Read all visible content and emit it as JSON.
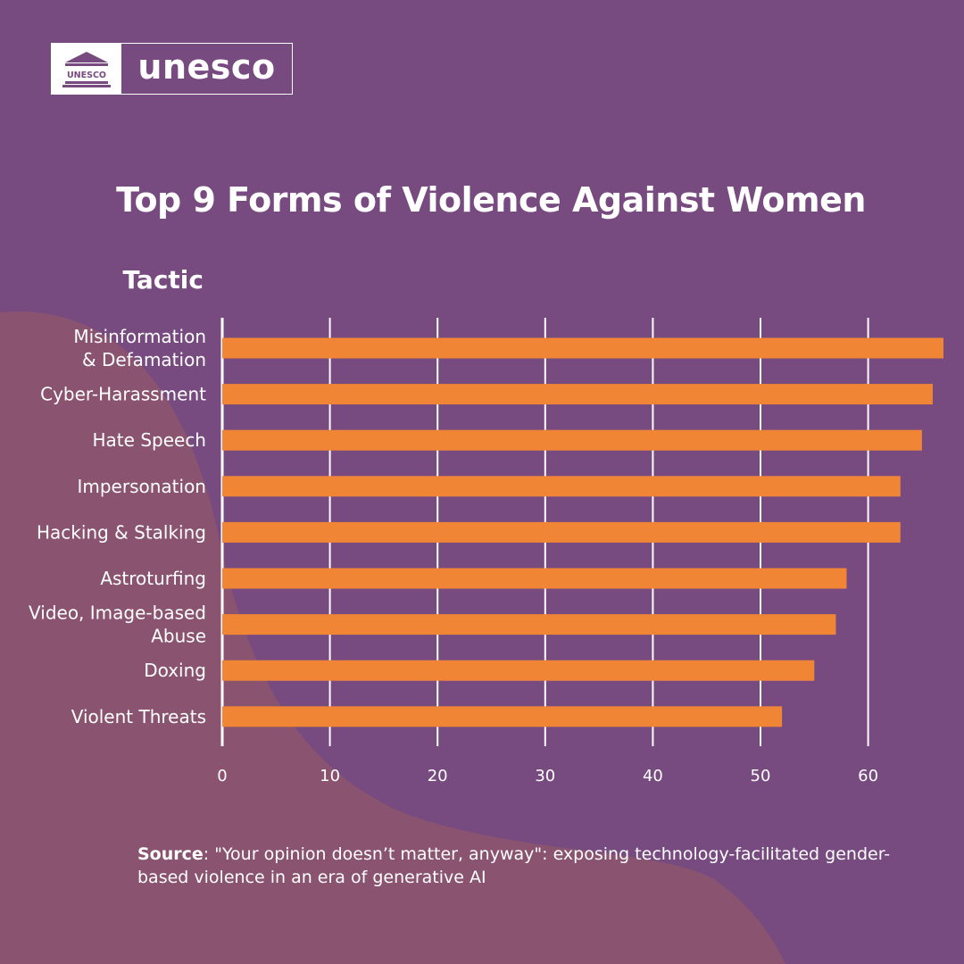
{
  "logo": {
    "word": "unesco",
    "emblem": "UNESCO"
  },
  "colors": {
    "background": "#774b80",
    "blob": "#8a5470",
    "bar": "#f08535",
    "grid": "#ffffff",
    "text": "#ffffff"
  },
  "chart_data": {
    "type": "bar",
    "orientation": "horizontal",
    "title": "Top 9 Forms of Violence Against Women",
    "ylabel": "Tactic",
    "xlabel": "",
    "categories": [
      [
        "Misinformation",
        "& Defamation"
      ],
      [
        "Cyber-Harassment"
      ],
      [
        "Hate Speech"
      ],
      [
        "Impersonation"
      ],
      [
        "Hacking & Stalking"
      ],
      [
        "Astroturfing"
      ],
      [
        "Video, Image-based",
        "Abuse"
      ],
      [
        "Doxing"
      ],
      [
        "Violent Threats"
      ]
    ],
    "values": [
      67,
      66,
      65,
      63,
      63,
      58,
      57,
      55,
      52
    ],
    "xticks": [
      0,
      10,
      20,
      30,
      40,
      50,
      60
    ],
    "xlim": [
      0,
      67
    ],
    "grid": true
  },
  "source": {
    "label": "Source",
    "text": ": \"Your opinion doesn’t matter, anyway\": exposing technology-facilitated gender-based violence in an era of generative AI"
  }
}
